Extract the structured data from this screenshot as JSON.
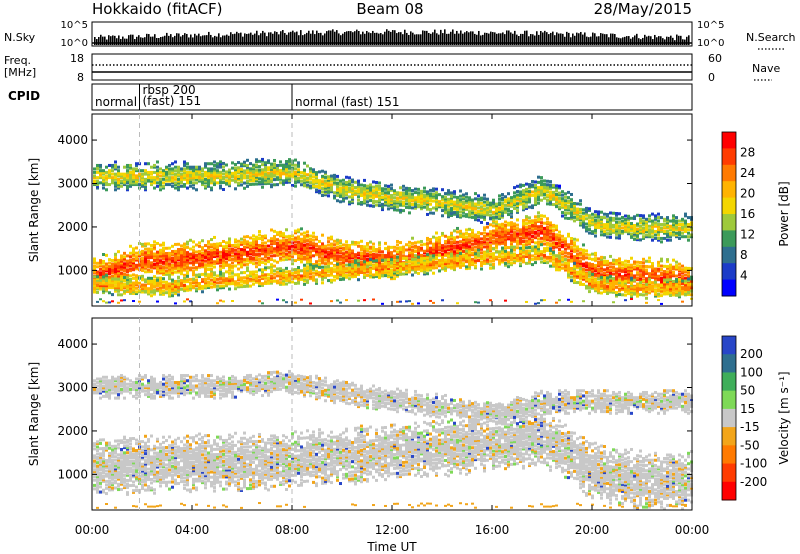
{
  "header": {
    "station": "Hokkaido (fitACF)",
    "beam": "Beam 08",
    "date": "28/May/2015"
  },
  "nsky_strip": {
    "left_label": "N.Sky",
    "right_label": "N.Search",
    "left_ticks": [
      "10^5",
      "10^0"
    ],
    "right_ticks": [
      "10^5",
      "10^0"
    ],
    "outline_color": "#000000"
  },
  "freq_strip": {
    "left_label_1": "Freq.",
    "left_label_2": "[MHz]",
    "right_label": "Nave",
    "left_ticks": [
      "18",
      "8"
    ],
    "right_ticks": [
      "60",
      "0"
    ]
  },
  "cpid": {
    "label": "CPID",
    "segments": [
      {
        "start_hour": 0.0,
        "lines": [
          "normal"
        ]
      },
      {
        "start_hour": 1.9,
        "lines": [
          "rbsp 200",
          "(fast) 151"
        ]
      },
      {
        "start_hour": 8.0,
        "lines": [
          "normal (fast)  151"
        ]
      }
    ]
  },
  "x_axis": {
    "label": "Time UT",
    "range_hours": [
      0,
      24
    ],
    "ticks": [
      "00:00",
      "04:00",
      "08:00",
      "12:00",
      "16:00",
      "20:00",
      "00:00"
    ]
  },
  "chart_data": [
    {
      "type": "heatmap",
      "parameter": "Power",
      "ylabel": "Slant Range [km]",
      "ylim": [
        180,
        4600
      ],
      "y_ticks": [
        1000,
        2000,
        3000,
        4000
      ],
      "colorbar": {
        "label": "Power [dB]",
        "ticks": [
          "28",
          "24",
          "20",
          "16",
          "12",
          "8",
          "4"
        ],
        "colors": [
          "#ff0000",
          "#ff3c00",
          "#ff7a00",
          "#ffb300",
          "#f3d600",
          "#9ec93c",
          "#3c9a5a",
          "#2e6f8f",
          "#1c3cc8",
          "#0000ff"
        ]
      },
      "bands": [
        {
          "name": "main-echo-band",
          "points": [
            [
              0,
              900
            ],
            [
              2,
              1250
            ],
            [
              4,
              1300
            ],
            [
              6,
              1450
            ],
            [
              8,
              1600
            ],
            [
              10,
              1350
            ],
            [
              12,
              1250
            ],
            [
              14,
              1500
            ],
            [
              16,
              1750
            ],
            [
              18,
              1950
            ],
            [
              20,
              1000
            ],
            [
              22,
              900
            ],
            [
              24,
              800
            ]
          ],
          "width_km": 450,
          "power_db": 26
        },
        {
          "name": "near-range-band",
          "points": [
            [
              0,
              700
            ],
            [
              3,
              650
            ],
            [
              5,
              800
            ],
            [
              8,
              900
            ],
            [
              10,
              1000
            ],
            [
              12,
              1100
            ],
            [
              14,
              1200
            ],
            [
              18,
              1400
            ],
            [
              20,
              700
            ],
            [
              22,
              600
            ],
            [
              24,
              650
            ]
          ],
          "width_km": 250,
          "power_db": 22
        },
        {
          "name": "upper-patches",
          "points": [
            [
              5,
              3200
            ],
            [
              8,
              3300
            ],
            [
              10,
              2900
            ],
            [
              12,
              2700
            ],
            [
              14,
              2600
            ],
            [
              16,
              2400
            ],
            [
              18,
              2900
            ],
            [
              20,
              2100
            ],
            [
              22,
              2000
            ]
          ],
          "width_km": 350,
          "power_db": 18
        }
      ]
    },
    {
      "type": "heatmap",
      "parameter": "Velocity",
      "ylabel": "Slant Range [km]",
      "ylim": [
        180,
        4600
      ],
      "y_ticks": [
        1000,
        2000,
        3000,
        4000
      ],
      "colorbar": {
        "label": "Velocity [m s⁻¹]",
        "ticks": [
          "200",
          "100",
          "50",
          "15",
          "-15",
          "-50",
          "-100",
          "-200"
        ],
        "colors": [
          "#2846c8",
          "#2e6f8f",
          "#3fae5a",
          "#7ed957",
          "#c8c8c8",
          "#f2a51a",
          "#ff7a00",
          "#ff3c00",
          "#ff0000"
        ]
      },
      "ground_scatter_color": "#c8c8c8",
      "note_bands": [
        {
          "name": "ground-scatter-band",
          "points": [
            [
              0,
              1200
            ],
            [
              4,
              1300
            ],
            [
              8,
              1350
            ],
            [
              11,
              1500
            ],
            [
              14,
              1650
            ],
            [
              16,
              1750
            ],
            [
              18,
              1900
            ],
            [
              20,
              1100
            ],
            [
              22,
              900
            ],
            [
              24,
              900
            ]
          ],
          "width_km": 700
        },
        {
          "name": "upper-scatter-band",
          "points": [
            [
              5,
              3050
            ],
            [
              8,
              3150
            ],
            [
              10,
              2900
            ],
            [
              12,
              2750
            ],
            [
              14,
              2600
            ],
            [
              16,
              2400
            ],
            [
              18,
              2700
            ]
          ],
          "width_km": 300
        }
      ]
    }
  ]
}
